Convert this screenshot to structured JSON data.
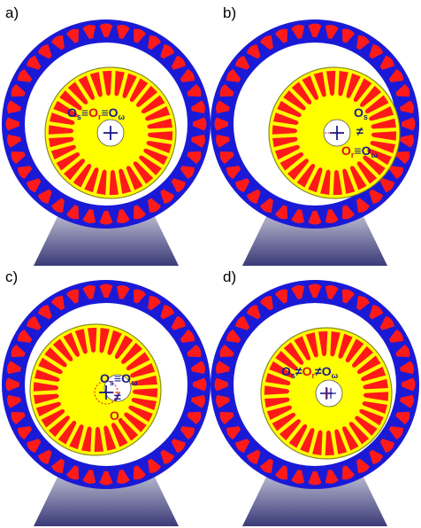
{
  "colors": {
    "stator": "#1a1ad6",
    "rotor": "#ffff00",
    "rotor_edge": "#8a8a20",
    "teeth": "#ff1a1a",
    "center_mark": "#1a1a8a",
    "red_mark": "#e01010",
    "support_top": "#dcdce8",
    "support_bottom": "#3a3a78"
  },
  "panels": [
    {
      "letter": "a)",
      "labels": [
        {
          "parts": [
            {
              "t": "O",
              "c": "blue"
            },
            {
              "t": "s",
              "c": "blue",
              "sub": true
            },
            {
              "t": "≡",
              "c": "blue"
            },
            {
              "t": "O",
              "c": "red"
            },
            {
              "t": "r",
              "c": "red",
              "sub": true
            },
            {
              "t": "≡",
              "c": "blue"
            },
            {
              "t": "O",
              "c": "blue"
            },
            {
              "t": "ω",
              "c": "blue",
              "sub": true
            }
          ]
        }
      ]
    },
    {
      "letter": "b)",
      "labels": [
        {
          "parts": [
            {
              "t": "O",
              "c": "blue"
            },
            {
              "t": "s",
              "c": "blue",
              "sub": true
            }
          ]
        },
        {
          "parts": [
            {
              "t": "≠",
              "c": "blue"
            }
          ]
        },
        {
          "parts": [
            {
              "t": "O",
              "c": "red"
            },
            {
              "t": "r",
              "c": "red",
              "sub": true
            },
            {
              "t": "≡",
              "c": "blue"
            },
            {
              "t": "O",
              "c": "blue"
            },
            {
              "t": "ω",
              "c": "blue",
              "sub": true
            }
          ]
        }
      ]
    },
    {
      "letter": "c)",
      "labels": [
        {
          "parts": [
            {
              "t": "O",
              "c": "blue"
            },
            {
              "t": "s",
              "c": "blue",
              "sub": true
            },
            {
              "t": "≡",
              "c": "blue"
            },
            {
              "t": "O",
              "c": "blue"
            },
            {
              "t": "ω",
              "c": "blue",
              "sub": true
            }
          ]
        },
        {
          "parts": [
            {
              "t": "≠",
              "c": "blue"
            }
          ]
        },
        {
          "parts": [
            {
              "t": "O",
              "c": "red"
            },
            {
              "t": "r",
              "c": "red",
              "sub": true
            }
          ]
        }
      ]
    },
    {
      "letter": "d)",
      "labels": [
        {
          "parts": [
            {
              "t": "O",
              "c": "blue"
            },
            {
              "t": "s",
              "c": "blue",
              "sub": true
            },
            {
              "t": "≠",
              "c": "blue"
            },
            {
              "t": "O",
              "c": "red"
            },
            {
              "t": "r",
              "c": "red",
              "sub": true
            },
            {
              "t": "≠",
              "c": "blue"
            },
            {
              "t": "O",
              "c": "blue"
            },
            {
              "t": "ω",
              "c": "blue",
              "sub": true
            }
          ]
        }
      ]
    }
  ]
}
